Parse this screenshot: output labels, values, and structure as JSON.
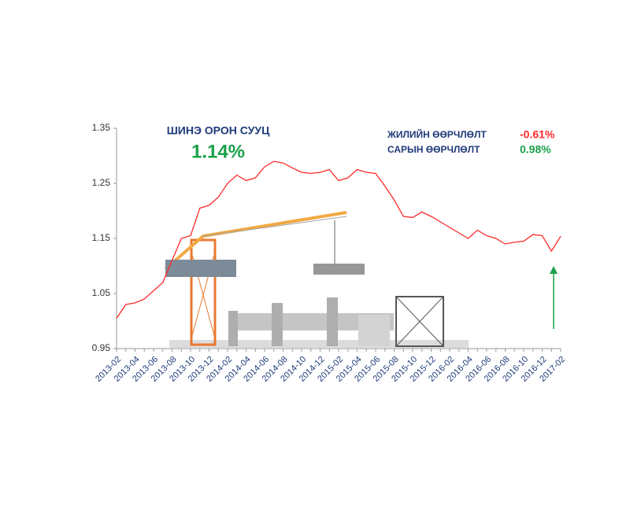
{
  "chart_data": {
    "type": "line",
    "title": "ШИНЭ ОРОН СУУЦ",
    "annotations": [
      "1.14%",
      "ЖИЛИЙН ӨӨРЧЛӨЛТ",
      "-0.61%",
      "САРЫН ӨӨРЧЛӨЛТ",
      "0.98%"
    ],
    "categories": [
      "2013-02",
      null,
      "2013-04",
      null,
      "2013-06",
      null,
      "2013-08",
      null,
      "2013-10",
      null,
      "2013-12",
      null,
      "2014-02",
      null,
      "2014-04",
      null,
      "2014-06",
      null,
      "2014-08",
      null,
      "2014-10",
      null,
      "2014-12",
      null,
      "2015-02",
      null,
      "2015-04",
      null,
      "2015-06",
      null,
      "2015-08",
      null,
      "2015-10",
      null,
      "2015-12",
      null,
      "2016-02",
      null,
      "2016-04",
      null,
      "2016-06",
      null,
      "2016-08",
      null,
      "2016-10",
      null,
      "2016-12",
      null,
      "2017-02"
    ],
    "series": [
      {
        "color": "#ff2a2a",
        "values": [
          1.005,
          1.03,
          1.033,
          1.04,
          1.055,
          1.07,
          1.11,
          1.15,
          1.155,
          1.205,
          1.21,
          1.225,
          1.25,
          1.265,
          1.255,
          1.26,
          1.28,
          1.29,
          1.287,
          1.278,
          1.27,
          1.268,
          1.27,
          1.275,
          1.255,
          1.26,
          1.275,
          1.27,
          1.268,
          1.245,
          1.22,
          1.19,
          1.188,
          1.198,
          1.19,
          1.18,
          1.17,
          1.16,
          1.15,
          1.165,
          1.155,
          1.15,
          1.14,
          1.143,
          1.145,
          1.157,
          1.155,
          1.127,
          1.154
        ]
      }
    ],
    "ylim": [
      0.95,
      1.35
    ],
    "yticks": [
      0.95,
      1.05,
      1.15,
      1.25,
      1.35
    ]
  }
}
